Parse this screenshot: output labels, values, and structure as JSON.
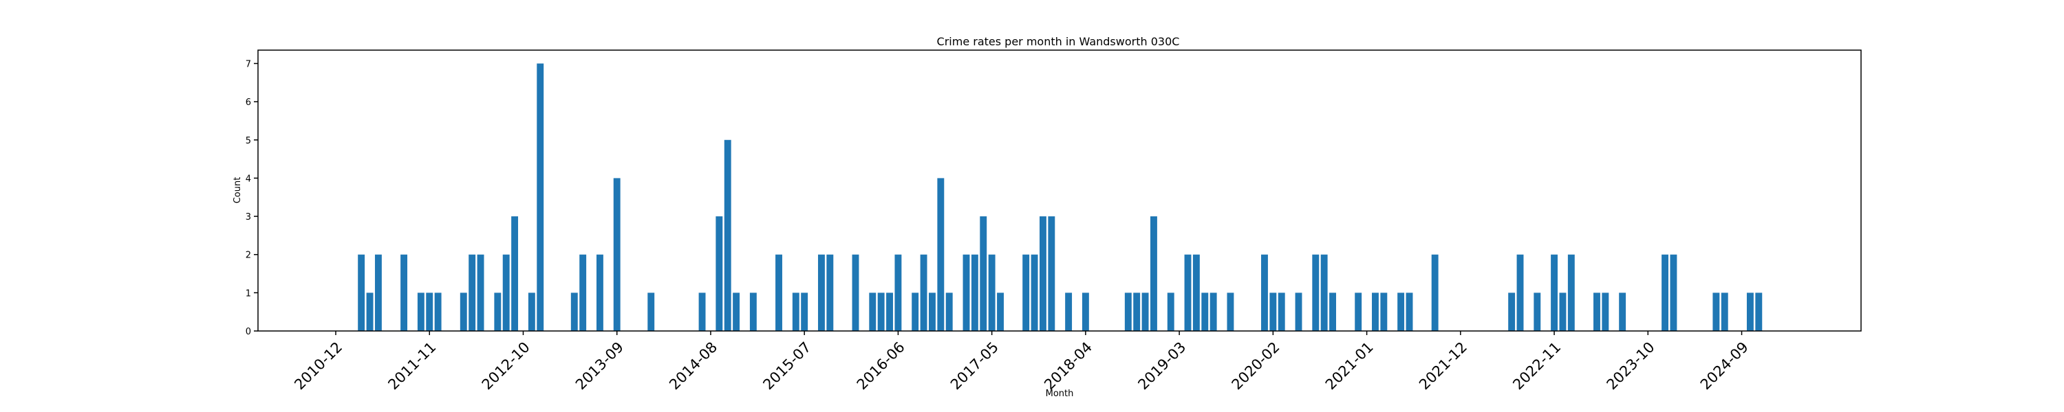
{
  "chart_data": {
    "type": "bar",
    "title": "Crime rates per month in Wandsworth 030C",
    "xlabel": "Month",
    "ylabel": "Count",
    "ylim": [
      0,
      7.35
    ],
    "yticks": [
      0,
      1,
      2,
      3,
      4,
      5,
      6,
      7
    ],
    "x_tick_labels": [
      "2010-12",
      "2011-11",
      "2012-10",
      "2013-09",
      "2014-08",
      "2015-07",
      "2016-06",
      "2017-05",
      "2018-04",
      "2019-03",
      "2020-02",
      "2021-01",
      "2021-12",
      "2022-11",
      "2023-10",
      "2024-09"
    ],
    "grid": false,
    "categories": [
      "2011-03",
      "2011-04",
      "2011-05",
      "2011-08",
      "2011-10",
      "2011-11",
      "2011-12",
      "2012-03",
      "2012-04",
      "2012-05",
      "2012-07",
      "2012-08",
      "2012-09",
      "2012-11",
      "2012-12",
      "2013-04",
      "2013-05",
      "2013-07",
      "2013-09",
      "2014-01",
      "2014-07",
      "2014-09",
      "2014-10",
      "2014-11",
      "2015-01",
      "2015-04",
      "2015-06",
      "2015-07",
      "2015-09",
      "2015-10",
      "2016-01",
      "2016-03",
      "2016-04",
      "2016-05",
      "2016-06",
      "2016-08",
      "2016-09",
      "2016-10",
      "2016-11",
      "2016-12",
      "2017-02",
      "2017-03",
      "2017-04",
      "2017-05",
      "2017-06",
      "2017-09",
      "2017-10",
      "2017-11",
      "2017-12",
      "2018-02",
      "2018-04",
      "2018-09",
      "2018-10",
      "2018-11",
      "2018-12",
      "2019-02",
      "2019-04",
      "2019-05",
      "2019-06",
      "2019-07",
      "2019-09",
      "2020-01",
      "2020-02",
      "2020-03",
      "2020-05",
      "2020-07",
      "2020-08",
      "2020-09",
      "2020-12",
      "2021-02",
      "2021-03",
      "2021-05",
      "2021-06",
      "2021-09",
      "2022-06",
      "2022-07",
      "2022-09",
      "2022-11",
      "2022-12",
      "2023-01",
      "2023-04",
      "2023-05",
      "2023-07",
      "2023-12",
      "2024-01",
      "2024-06",
      "2024-07",
      "2024-10",
      "2024-11"
    ],
    "values": [
      2,
      1,
      2,
      2,
      1,
      1,
      1,
      1,
      2,
      2,
      1,
      2,
      3,
      1,
      7,
      1,
      2,
      2,
      4,
      1,
      1,
      3,
      5,
      1,
      1,
      2,
      1,
      1,
      2,
      2,
      2,
      1,
      1,
      1,
      2,
      1,
      2,
      1,
      4,
      1,
      2,
      2,
      3,
      2,
      1,
      2,
      2,
      3,
      3,
      1,
      1,
      1,
      1,
      1,
      3,
      1,
      2,
      2,
      1,
      1,
      1,
      2,
      1,
      1,
      1,
      2,
      2,
      1,
      1,
      1,
      1,
      1,
      1,
      2,
      1,
      2,
      1,
      2,
      1,
      2,
      1,
      1,
      1,
      2,
      2,
      1,
      1,
      1,
      1
    ]
  }
}
